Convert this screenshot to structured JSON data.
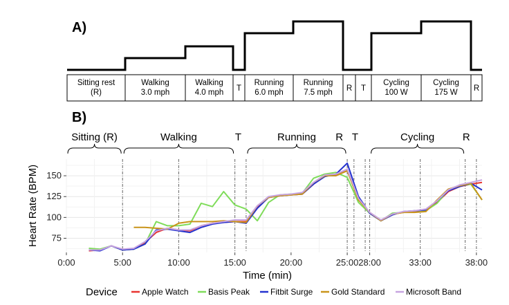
{
  "panel_a": {
    "label": "A)",
    "segments": [
      {
        "lines": [
          "Sitting rest",
          "(R)"
        ],
        "level": 0
      },
      {
        "lines": [
          "Walking",
          "3.0 mph"
        ],
        "level": 1
      },
      {
        "lines": [
          "Walking",
          "4.0 mph"
        ],
        "level": 2
      },
      {
        "lines": [
          "T"
        ],
        "level": 0
      },
      {
        "lines": [
          "Running",
          "6.0 mph"
        ],
        "level": 3
      },
      {
        "lines": [
          "Running",
          "7.5 mph"
        ],
        "level": 4
      },
      {
        "lines": [
          "R"
        ],
        "level": 0
      },
      {
        "lines": [
          "T"
        ],
        "level": 0
      },
      {
        "lines": [
          "Cycling",
          "100 W"
        ],
        "level": 3
      },
      {
        "lines": [
          "Cycling",
          "175 W"
        ],
        "level": 4
      },
      {
        "lines": [
          "R"
        ],
        "level": 0
      }
    ]
  },
  "panel_b": {
    "label": "B)",
    "phases": [
      {
        "text": "Sitting (R)",
        "brace": true,
        "from": 0,
        "to": 5
      },
      {
        "text": "Walking",
        "brace": true,
        "from": 5,
        "to": 15
      },
      {
        "text": "T",
        "brace": false,
        "at": 15.3
      },
      {
        "text": "Running",
        "brace": true,
        "from": 16,
        "to": 25
      },
      {
        "text": "R",
        "brace": false,
        "at": 24.3
      },
      {
        "text": "T",
        "brace": false,
        "at": 25.7
      },
      {
        "text": "Cycling",
        "brace": true,
        "from": 27,
        "to": 35.5
      },
      {
        "text": "R",
        "brace": false,
        "at": 35.6
      }
    ]
  },
  "chart_data": {
    "type": "line",
    "title": "",
    "xlabel": "Time (min)",
    "ylabel": "Heart Rate (BPM)",
    "xlim": [
      0,
      37
    ],
    "ylim": [
      58,
      170
    ],
    "y_ticks": [
      75,
      100,
      125,
      150
    ],
    "x_ticks": [
      {
        "x": 0,
        "label": "0:00"
      },
      {
        "x": 5,
        "label": "5:00"
      },
      {
        "x": 10,
        "label": "10:00"
      },
      {
        "x": 15,
        "label": "15:00"
      },
      {
        "x": 20,
        "label": "20:00"
      },
      {
        "x": 25,
        "label": "25:00"
      },
      {
        "x": 27,
        "label": "28:00"
      },
      {
        "x": 31.5,
        "label": "33:00"
      },
      {
        "x": 36.5,
        "label": "38:00"
      }
    ],
    "vlines": [
      5,
      10,
      15,
      16,
      25,
      25.6,
      26.6,
      27,
      31.5,
      35.5,
      36.5
    ],
    "legend_title": "Device",
    "legend_position": "bottom",
    "series": [
      {
        "name": "Apple Watch",
        "color": "#e8332f",
        "x": [
          2,
          3,
          4,
          5,
          6,
          7,
          8,
          9,
          10,
          11,
          12,
          13,
          14,
          15,
          16,
          17,
          18,
          19,
          20,
          21,
          22,
          23,
          24,
          25,
          26,
          27,
          28,
          29,
          30,
          31,
          32,
          33,
          34,
          35,
          36,
          37
        ],
        "y": [
          60,
          61,
          66,
          61,
          62,
          70,
          82,
          87,
          85,
          84,
          90,
          93,
          94,
          95,
          95,
          112,
          124,
          126,
          127,
          128,
          140,
          150,
          151,
          156,
          124,
          105,
          96,
          104,
          106,
          107,
          108,
          118,
          131,
          137,
          140,
          142
        ]
      },
      {
        "name": "Basis Peak",
        "color": "#7fdc5a",
        "x": [
          2,
          3,
          4,
          5,
          6,
          7,
          8,
          9,
          10,
          11,
          12,
          13,
          14,
          15,
          16,
          17,
          18,
          19,
          20,
          21,
          22,
          23,
          24,
          25,
          26,
          27,
          28,
          29,
          30,
          31,
          32,
          33,
          34,
          35,
          36,
          37
        ],
        "y": [
          63,
          62,
          66,
          61,
          62,
          68,
          95,
          90,
          90,
          92,
          117,
          113,
          131,
          115,
          110,
          96,
          118,
          127,
          128,
          129,
          147,
          152,
          154,
          148,
          118,
          105,
          96,
          105,
          106,
          108,
          108,
          117,
          133,
          138,
          140,
          121
        ]
      },
      {
        "name": "Fitbit Surge",
        "color": "#2432cf",
        "x": [
          2,
          3,
          4,
          5,
          6,
          7,
          8,
          9,
          10,
          11,
          12,
          13,
          14,
          15,
          16,
          17,
          18,
          19,
          20,
          21,
          22,
          23,
          24,
          25,
          26,
          27,
          28,
          29,
          30,
          31,
          32,
          33,
          34,
          35,
          36,
          37
        ],
        "y": [
          61,
          60,
          66,
          61,
          62,
          68,
          85,
          86,
          84,
          82,
          88,
          92,
          94,
          95,
          93,
          111,
          124,
          126,
          127,
          128,
          140,
          149,
          152,
          165,
          125,
          105,
          96,
          103,
          107,
          108,
          109,
          120,
          132,
          137,
          141,
          133
        ]
      },
      {
        "name": "Gold Standard",
        "color": "#c9941a",
        "x": [
          6,
          7,
          8,
          9,
          10,
          11,
          12,
          13,
          14,
          15,
          16,
          17,
          18,
          19,
          20,
          21,
          22,
          23,
          24,
          25,
          26,
          27,
          28,
          29,
          30,
          31,
          32,
          33,
          34,
          35,
          36,
          37
        ],
        "y": [
          88,
          88,
          87,
          86,
          93,
          95,
          95,
          95,
          96,
          95,
          94,
          114,
          124,
          126,
          127,
          128,
          142,
          150,
          150,
          156,
          121,
          106,
          96,
          104,
          106,
          106,
          107,
          121,
          134,
          138,
          141,
          121
        ]
      },
      {
        "name": "Microsoft Band",
        "color": "#c7a4e0",
        "x": [
          2,
          3,
          4,
          5,
          6,
          7,
          8,
          9,
          10,
          11,
          12,
          13,
          14,
          15,
          16,
          17,
          18,
          19,
          20,
          21,
          22,
          23,
          24,
          25,
          26,
          27,
          28,
          29,
          30,
          31,
          32,
          33,
          34,
          35,
          36,
          37
        ],
        "y": [
          61,
          61,
          66,
          62,
          63,
          71,
          84,
          87,
          85,
          85,
          90,
          93,
          95,
          97,
          97,
          114,
          125,
          127,
          128,
          130,
          142,
          151,
          152,
          158,
          123,
          106,
          97,
          104,
          107,
          108,
          110,
          120,
          133,
          139,
          142,
          145
        ]
      }
    ]
  }
}
